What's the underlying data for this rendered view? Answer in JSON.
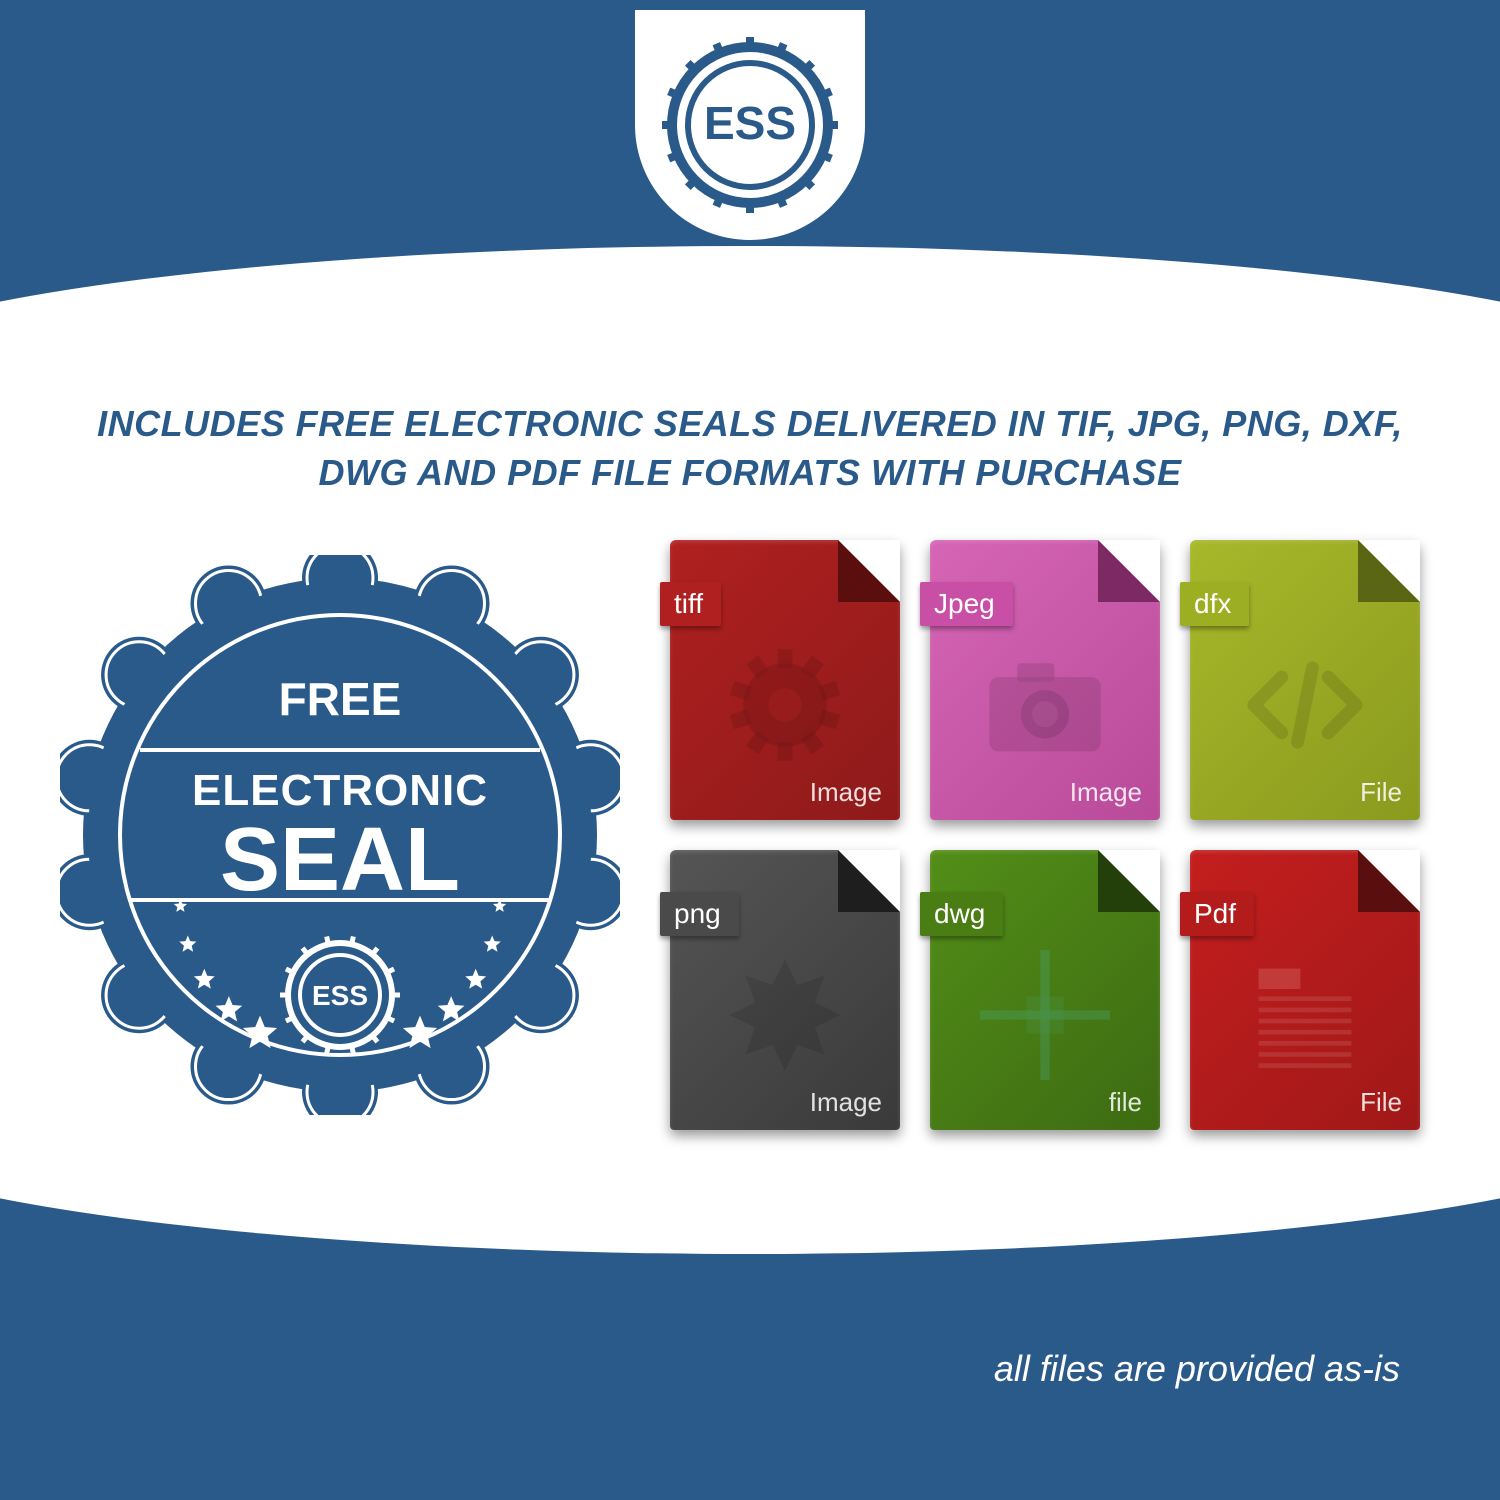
{
  "colors": {
    "brand_blue": "#2a5a8a",
    "white": "#ffffff"
  },
  "logo": {
    "text": "ESS",
    "ring_color": "#2a5a8a",
    "text_color": "#2a5a8a"
  },
  "headline": "INCLUDES FREE ELECTRONIC SEALS DELIVERED IN TIF, JPG, PNG, DXF, DWG AND PDF FILE FORMATS WITH PURCHASE",
  "seal": {
    "line1": "FREE",
    "line2": "ELECTRONIC",
    "line3": "SEAL",
    "badge_text": "ESS",
    "fill": "#2a5a8a",
    "text_color": "#ffffff",
    "star_count": 10
  },
  "files": [
    {
      "label": "tiff",
      "sub": "Image",
      "body_bg": "#8e1a1a",
      "body_grad": "#b02020",
      "tag_bg": "#b02020",
      "fold": "#5a0e0e",
      "icon": "gear"
    },
    {
      "label": "Jpeg",
      "sub": "Image",
      "body_bg": "#b94a9a",
      "body_grad": "#d665b5",
      "tag_bg": "#c94fa6",
      "fold": "#7d2a64",
      "icon": "camera"
    },
    {
      "label": "dfx",
      "sub": "File",
      "body_bg": "#8a9a1e",
      "body_grad": "#a8b82a",
      "tag_bg": "#9cae22",
      "fold": "#5a6614",
      "icon": "code"
    },
    {
      "label": "png",
      "sub": "Image",
      "body_bg": "#3a3a3a",
      "body_grad": "#555555",
      "tag_bg": "#4a4a4a",
      "fold": "#1e1e1e",
      "icon": "starburst"
    },
    {
      "label": "dwg",
      "sub": "file",
      "body_bg": "#3d6b12",
      "body_grad": "#528e18",
      "tag_bg": "#4a7e14",
      "fold": "#24400a",
      "icon": "crosshair"
    },
    {
      "label": "Pdf",
      "sub": "File",
      "body_bg": "#a01818",
      "body_grad": "#c41e1e",
      "tag_bg": "#b41c1c",
      "fold": "#5a0e0e",
      "icon": "doclines"
    }
  ],
  "footnote": "all files are provided as-is"
}
